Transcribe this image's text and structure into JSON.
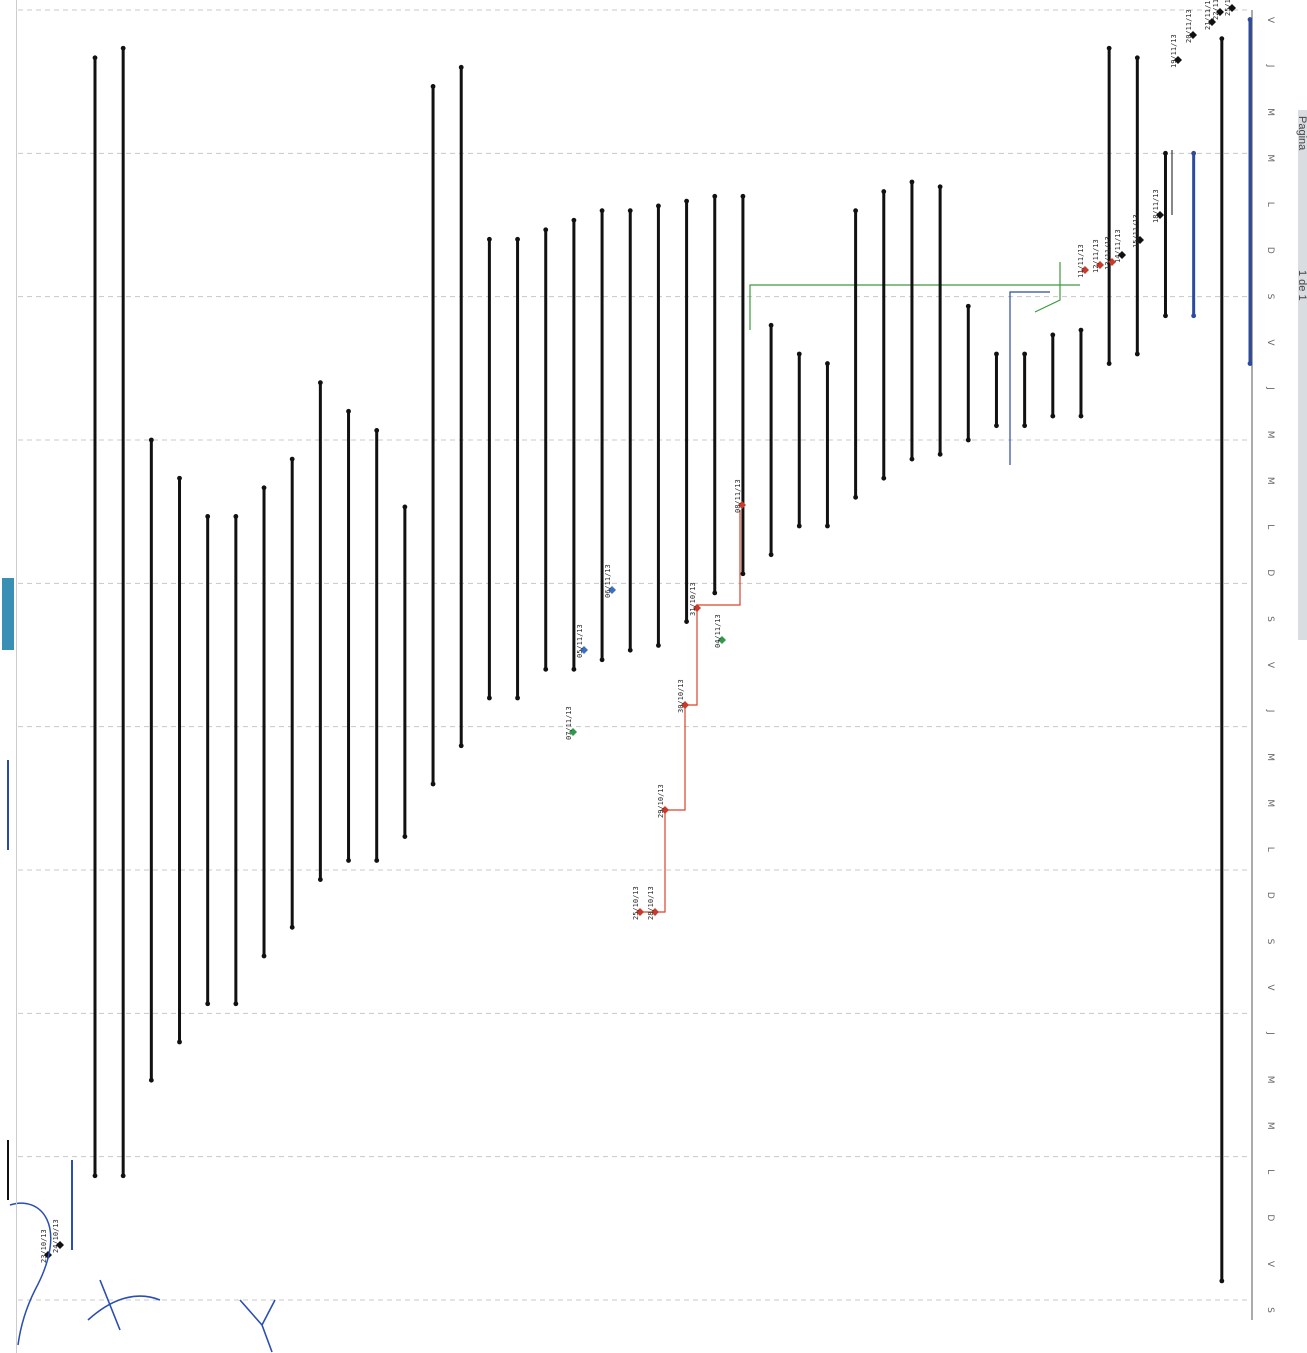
{
  "page_tab": {
    "label_1": "Pagina",
    "label_2": "1 de 1"
  },
  "colors": {
    "task_bar": "#111111",
    "blue_bar": "#2b4aa0",
    "critical_link": "#d9442b",
    "green_link": "#3d9a3d",
    "milestone_red": "#c93a2a",
    "milestone_green": "#2f9a4a",
    "milestone_blue": "#3a6fc2",
    "annotation_ink": "#2a4fb0",
    "legend_swatch": "#3a8fb5"
  },
  "chart_data": {
    "type": "gantt",
    "orientation": "rotated-90",
    "grid": true,
    "time_axis_ticks": [
      "S",
      "V",
      "D",
      "L",
      "M",
      "M",
      "J",
      "V",
      "S",
      "D",
      "L",
      "M",
      "M",
      "J",
      "V",
      "S",
      "D",
      "L",
      "M",
      "M",
      "J",
      "V",
      "S",
      "D",
      "L",
      "M",
      "M",
      "J",
      "V"
    ],
    "bars": [
      {
        "row": 1,
        "start": 1.3,
        "end": 13.0,
        "style": "black"
      },
      {
        "row": 2,
        "start": 1.3,
        "end": 13.1,
        "style": "black"
      },
      {
        "row": 3,
        "start": 2.3,
        "end": 9.0,
        "style": "black"
      },
      {
        "row": 4,
        "start": 2.7,
        "end": 8.6,
        "style": "black"
      },
      {
        "row": 5,
        "start": 3.1,
        "end": 8.2,
        "style": "black"
      },
      {
        "row": 6,
        "start": 3.1,
        "end": 8.2,
        "style": "black"
      },
      {
        "row": 7,
        "start": 3.6,
        "end": 8.5,
        "style": "black"
      },
      {
        "row": 8,
        "start": 3.9,
        "end": 8.8,
        "style": "black"
      },
      {
        "row": 9,
        "start": 4.4,
        "end": 9.6,
        "style": "black"
      },
      {
        "row": 10,
        "start": 4.6,
        "end": 9.3,
        "style": "black"
      },
      {
        "row": 11,
        "start": 4.6,
        "end": 9.1,
        "style": "black"
      },
      {
        "row": 12,
        "start": 4.85,
        "end": 8.3,
        "style": "black"
      },
      {
        "row": 13,
        "start": 5.4,
        "end": 12.7,
        "style": "black"
      },
      {
        "row": 14,
        "start": 5.8,
        "end": 12.9,
        "style": "black"
      },
      {
        "row": 15,
        "start": 6.3,
        "end": 11.1,
        "style": "black"
      },
      {
        "row": 16,
        "start": 6.3,
        "end": 11.1,
        "style": "black"
      },
      {
        "row": 17,
        "start": 6.6,
        "end": 11.2,
        "style": "black"
      },
      {
        "row": 18,
        "start": 6.6,
        "end": 11.3,
        "style": "black"
      },
      {
        "row": 19,
        "start": 6.7,
        "end": 11.4,
        "style": "black"
      },
      {
        "row": 20,
        "start": 6.8,
        "end": 11.4,
        "style": "black"
      },
      {
        "row": 21,
        "start": 6.85,
        "end": 11.45,
        "style": "black"
      },
      {
        "row": 22,
        "start": 7.1,
        "end": 11.5,
        "style": "black"
      },
      {
        "row": 23,
        "start": 7.4,
        "end": 11.55,
        "style": "black"
      },
      {
        "row": 24,
        "start": 7.6,
        "end": 11.55,
        "style": "black"
      },
      {
        "row": 25,
        "start": 7.8,
        "end": 10.2,
        "style": "black"
      },
      {
        "row": 26,
        "start": 8.1,
        "end": 9.9,
        "style": "black"
      },
      {
        "row": 27,
        "start": 8.1,
        "end": 9.8,
        "style": "black"
      },
      {
        "row": 28,
        "start": 8.4,
        "end": 11.4,
        "style": "black"
      },
      {
        "row": 29,
        "start": 8.6,
        "end": 11.6,
        "style": "black"
      },
      {
        "row": 30,
        "start": 8.8,
        "end": 11.7,
        "style": "black"
      },
      {
        "row": 31,
        "start": 8.85,
        "end": 11.65,
        "style": "black"
      },
      {
        "row": 32,
        "start": 9.0,
        "end": 10.4,
        "style": "black"
      },
      {
        "row": 33,
        "start": 9.15,
        "end": 9.9,
        "style": "black"
      },
      {
        "row": 34,
        "start": 9.15,
        "end": 9.9,
        "style": "black"
      },
      {
        "row": 35,
        "start": 9.25,
        "end": 10.1,
        "style": "black"
      },
      {
        "row": 36,
        "start": 9.25,
        "end": 10.15,
        "style": "black"
      },
      {
        "row": 37,
        "start": 9.8,
        "end": 13.1,
        "style": "black"
      },
      {
        "row": 38,
        "start": 9.9,
        "end": 13.0,
        "style": "black"
      },
      {
        "row": 39,
        "start": 10.3,
        "end": 12.0,
        "style": "black"
      },
      {
        "row": 40,
        "start": 10.3,
        "end": 12.0,
        "style": "blue"
      },
      {
        "row": 41,
        "start": 0.2,
        "end": 13.2,
        "style": "black"
      },
      {
        "row": 42,
        "start": 9.8,
        "end": 13.4,
        "style": "blue"
      }
    ],
    "milestones": [
      {
        "label": "23/10/13",
        "color": "black"
      },
      {
        "label": "24/10/13",
        "color": "black"
      },
      {
        "label": "25/10/13",
        "color": "red"
      },
      {
        "label": "28/10/13",
        "color": "red"
      },
      {
        "label": "29/10/13",
        "color": "red"
      },
      {
        "label": "30/10/13",
        "color": "red"
      },
      {
        "label": "31/10/13",
        "color": "red"
      },
      {
        "label": "04/11/13",
        "color": "green"
      },
      {
        "label": "05/11/13",
        "color": "blue"
      },
      {
        "label": "06/11/13",
        "color": "blue"
      },
      {
        "label": "07/11/13",
        "color": "green"
      },
      {
        "label": "08/11/13",
        "color": "red"
      },
      {
        "label": "11/11/13",
        "color": "red"
      },
      {
        "label": "12/11/13",
        "color": "red"
      },
      {
        "label": "13/11/13",
        "color": "red"
      },
      {
        "label": "14/11/13",
        "color": "black"
      },
      {
        "label": "15/11/13",
        "color": "black"
      },
      {
        "label": "18/11/13",
        "color": "black"
      },
      {
        "label": "19/11/13",
        "color": "black"
      },
      {
        "label": "20/11/13",
        "color": "black"
      },
      {
        "label": "21/11/13",
        "color": "black"
      },
      {
        "label": "22/11/13",
        "color": "black"
      },
      {
        "label": "25/11/13",
        "color": "black"
      }
    ]
  }
}
